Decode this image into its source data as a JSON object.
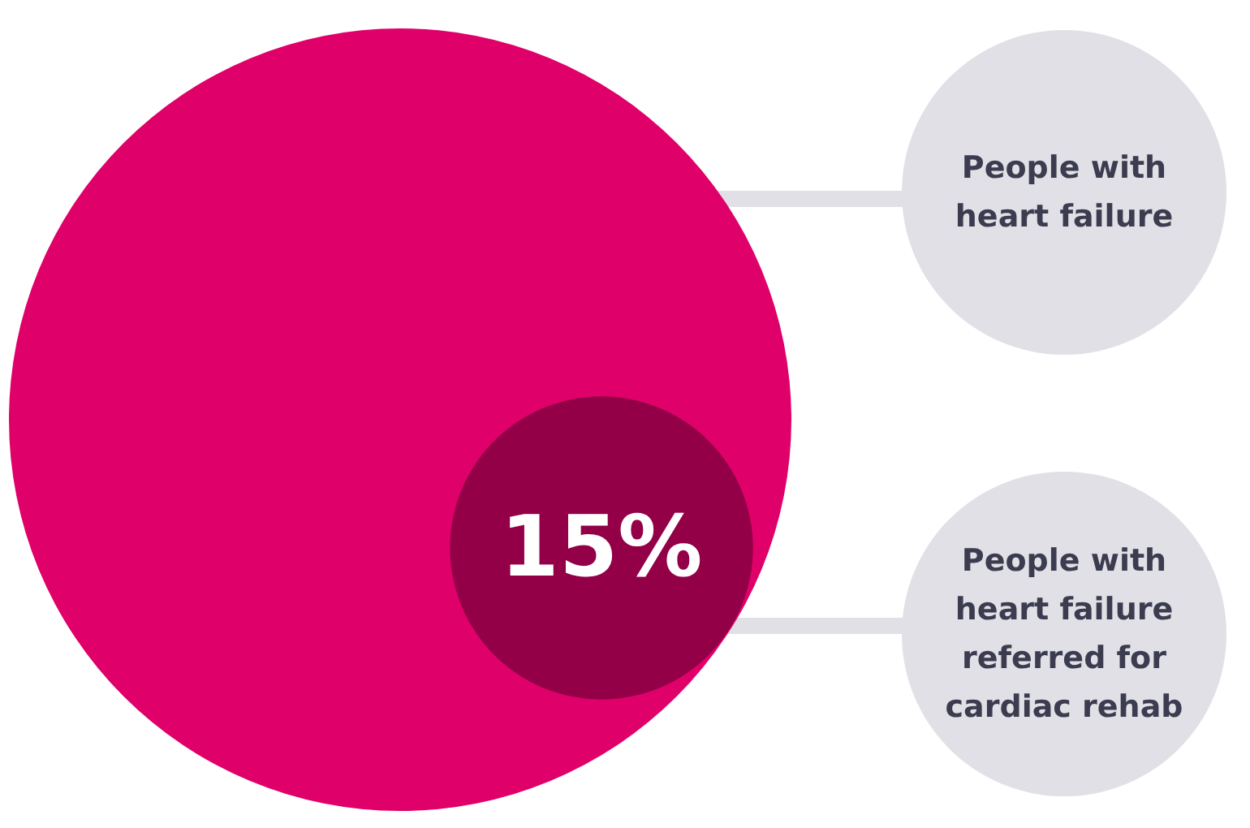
{
  "chart_data": {
    "type": "other",
    "categories": [
      null,
      null
    ],
    "annotations": [
      "People with heart failure",
      "People with heart failure referred for cardiac rehab"
    ],
    "values": [
      null,
      15
    ],
    "value_labels": [
      null,
      "15%"
    ],
    "colors": [
      "#e0006a",
      "#930048"
    ]
  }
}
